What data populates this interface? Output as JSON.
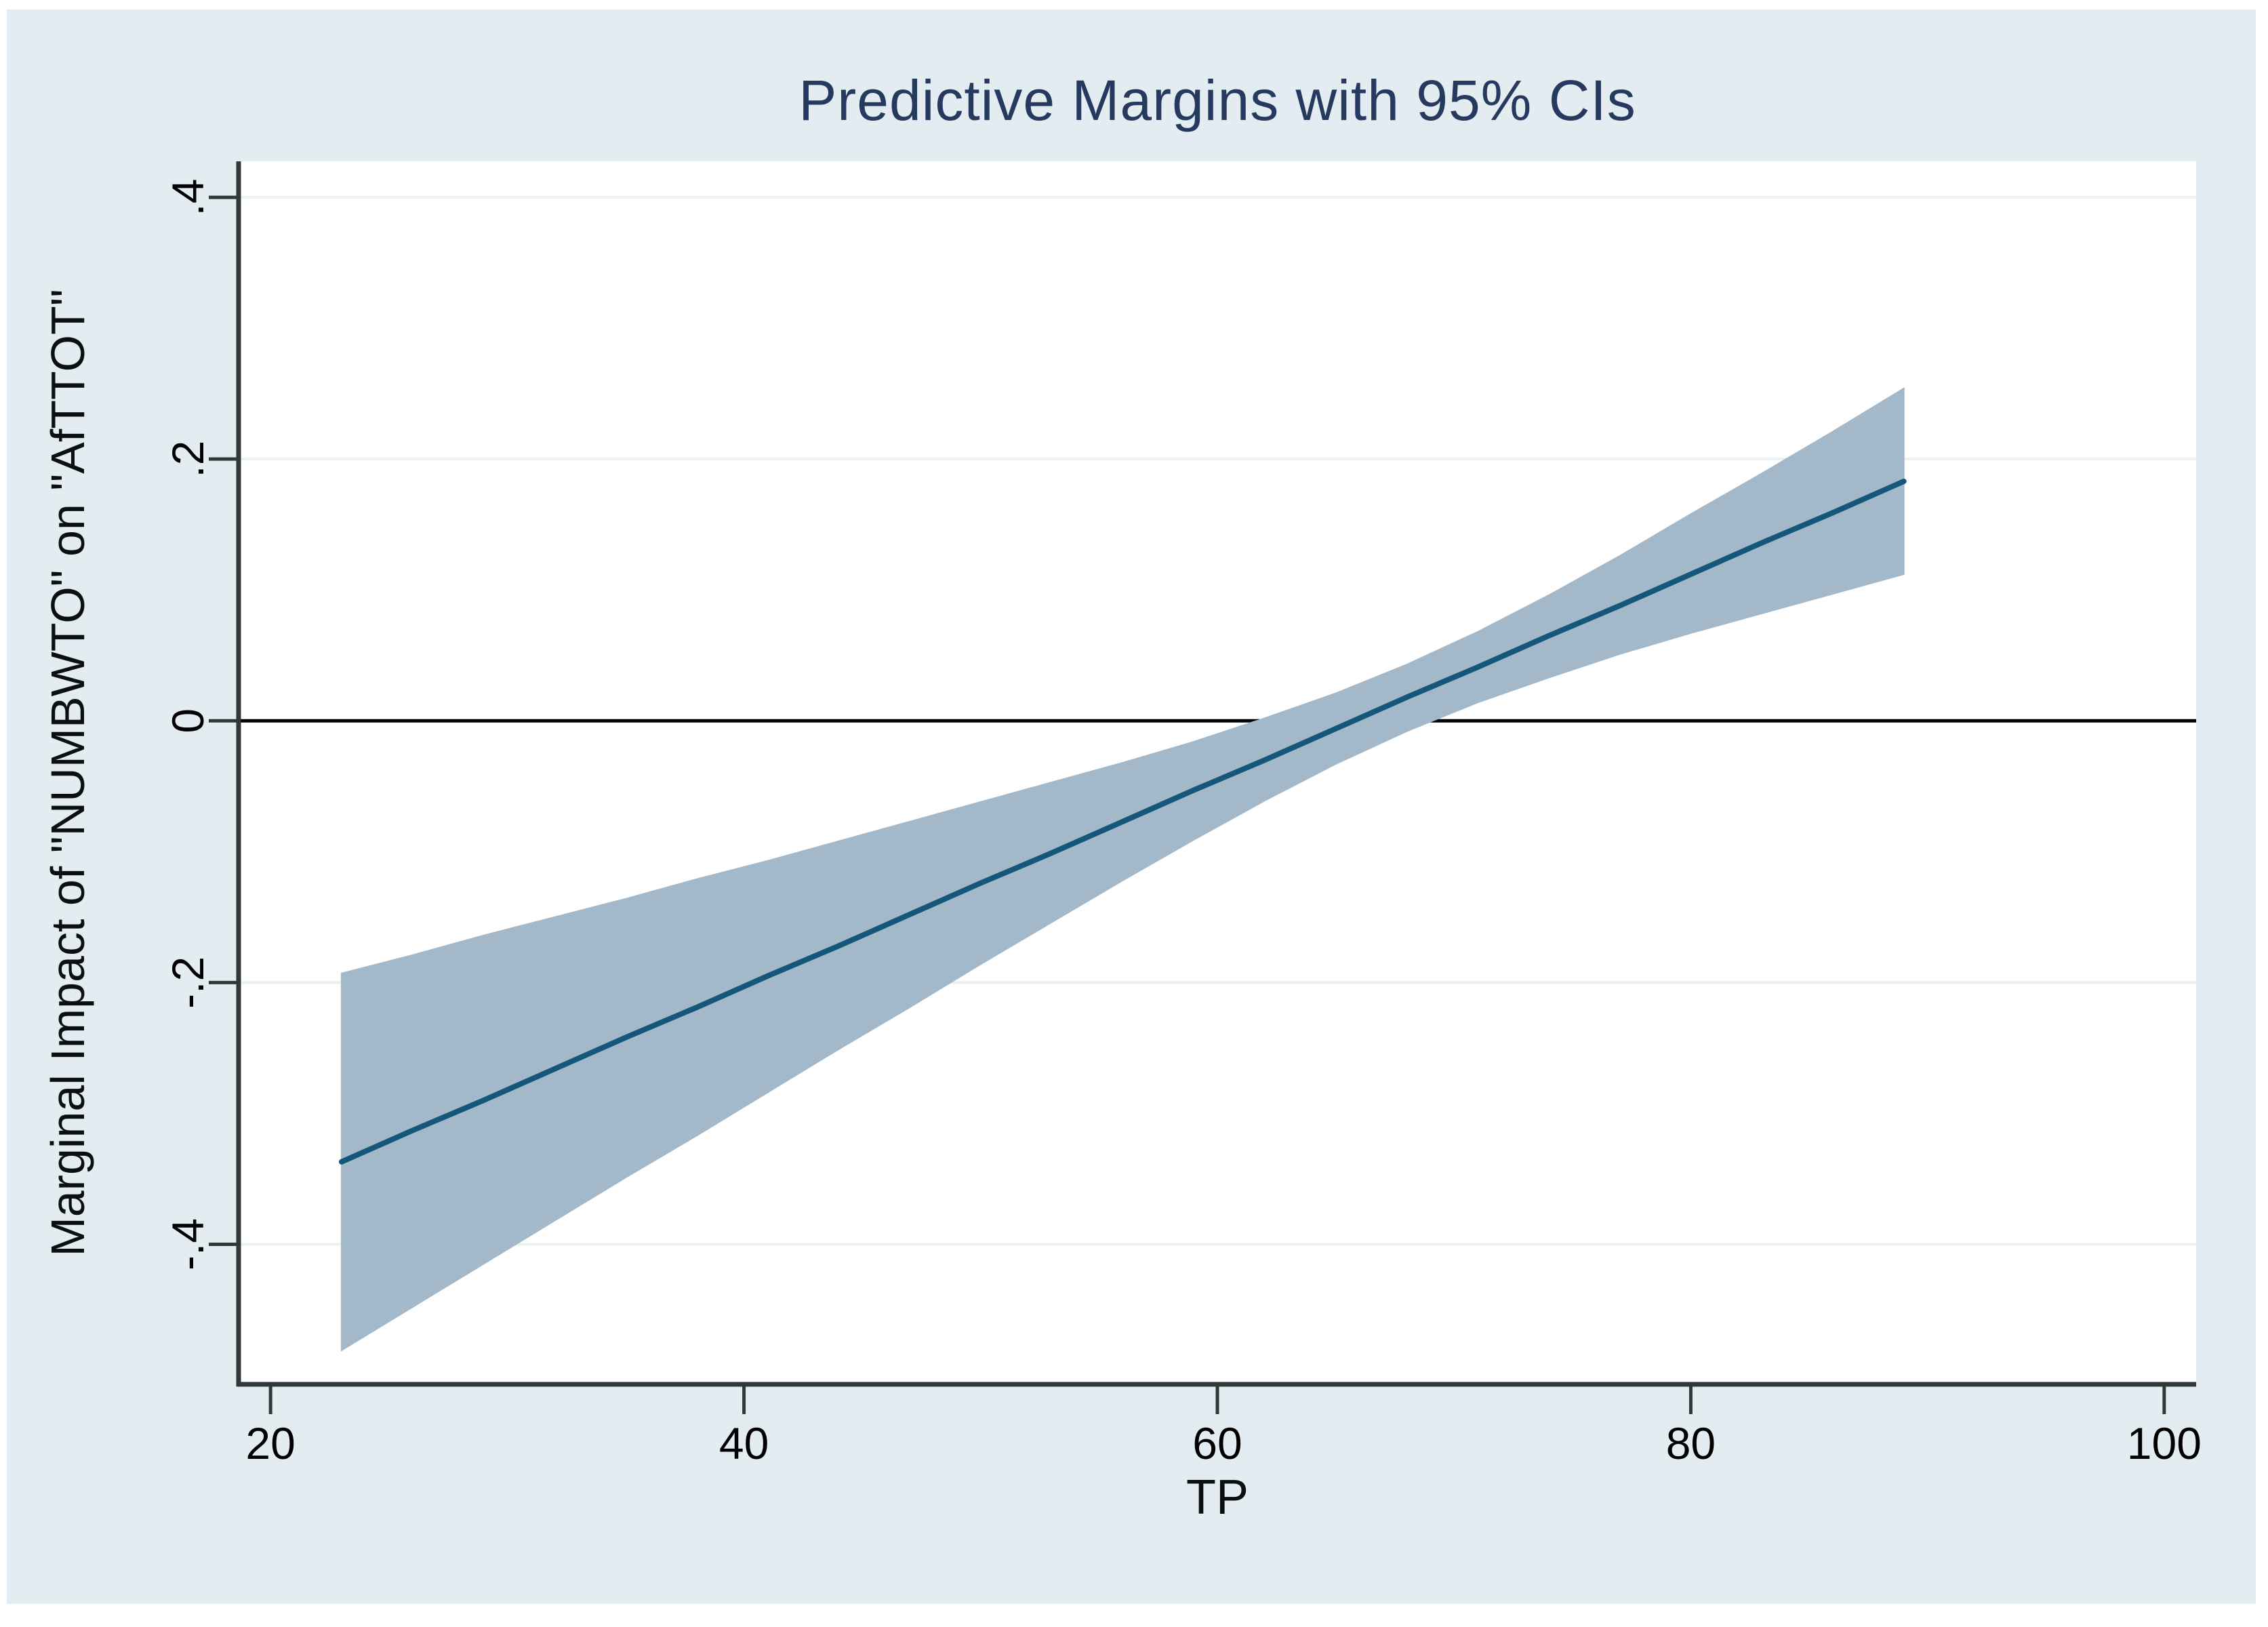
{
  "page": {
    "background_color": "#ffffff",
    "canvas_color": "#e3edf1"
  },
  "chart": {
    "title": "Predictive Margins with 95% CIs",
    "xlabel": "TP",
    "ylabel": "Marginal Impact of \"NUMBWTO\" on \"AfTTOT\""
  },
  "chart_data": {
    "type": "line",
    "title": "Predictive Margins with 95% CIs",
    "xlabel": "TP",
    "ylabel": "Marginal Impact of \"NUMBWTO\" on \"AfTTOT\"",
    "grid": true,
    "legend_position": "none",
    "xlim": [
      18.65,
      101.35
    ],
    "ylim": [
      -0.507,
      0.4275
    ],
    "xticks": [
      20,
      40,
      60,
      80,
      100
    ],
    "yticks": [
      {
        "label": ".4",
        "value": 0.4
      },
      {
        "label": ".2",
        "value": 0.2
      },
      {
        "label": "0",
        "value": 0.0
      },
      {
        "label": "-.2",
        "value": -0.2
      },
      {
        "label": "-.4",
        "value": -0.4
      }
    ],
    "refline_y": 0,
    "x": [
      23,
      26,
      29,
      32,
      35,
      38,
      41,
      44,
      47,
      50,
      53,
      56,
      59,
      62,
      65,
      68,
      71,
      74,
      77,
      80,
      83,
      86,
      89
    ],
    "series": [
      {
        "name": "95% confidence band",
        "kind": "area",
        "upper": [
          -0.193,
          -0.179,
          -0.164,
          -0.15,
          -0.136,
          -0.121,
          -0.107,
          -0.092,
          -0.077,
          -0.062,
          -0.047,
          -0.032,
          -0.016,
          0.002,
          0.021,
          0.043,
          0.068,
          0.096,
          0.126,
          0.158,
          0.189,
          0.221,
          0.254
        ],
        "lower": [
          -0.481,
          -0.448,
          -0.415,
          -0.382,
          -0.349,
          -0.317,
          -0.284,
          -0.251,
          -0.219,
          -0.186,
          -0.154,
          -0.122,
          -0.091,
          -0.061,
          -0.033,
          -0.008,
          0.014,
          0.033,
          0.051,
          0.067,
          0.082,
          0.097,
          0.112
        ]
      },
      {
        "name": "predictive margin",
        "kind": "line",
        "values": [
          -0.337,
          -0.313,
          -0.29,
          -0.266,
          -0.242,
          -0.219,
          -0.195,
          -0.172,
          -0.148,
          -0.124,
          -0.101,
          -0.077,
          -0.053,
          -0.03,
          -0.006,
          0.018,
          0.041,
          0.065,
          0.088,
          0.112,
          0.136,
          0.159,
          0.183
        ]
      }
    ],
    "colors": {
      "band_fill": "#a3b8c8",
      "mean_line": "#14577a",
      "refline": "#000000",
      "gridline": "#e9f1f3",
      "axis": "#32383a",
      "title_text": "#253a5e",
      "tick_text": "#000000",
      "plot_background": "#ffffff",
      "outer_background": "#e3edf1"
    }
  }
}
